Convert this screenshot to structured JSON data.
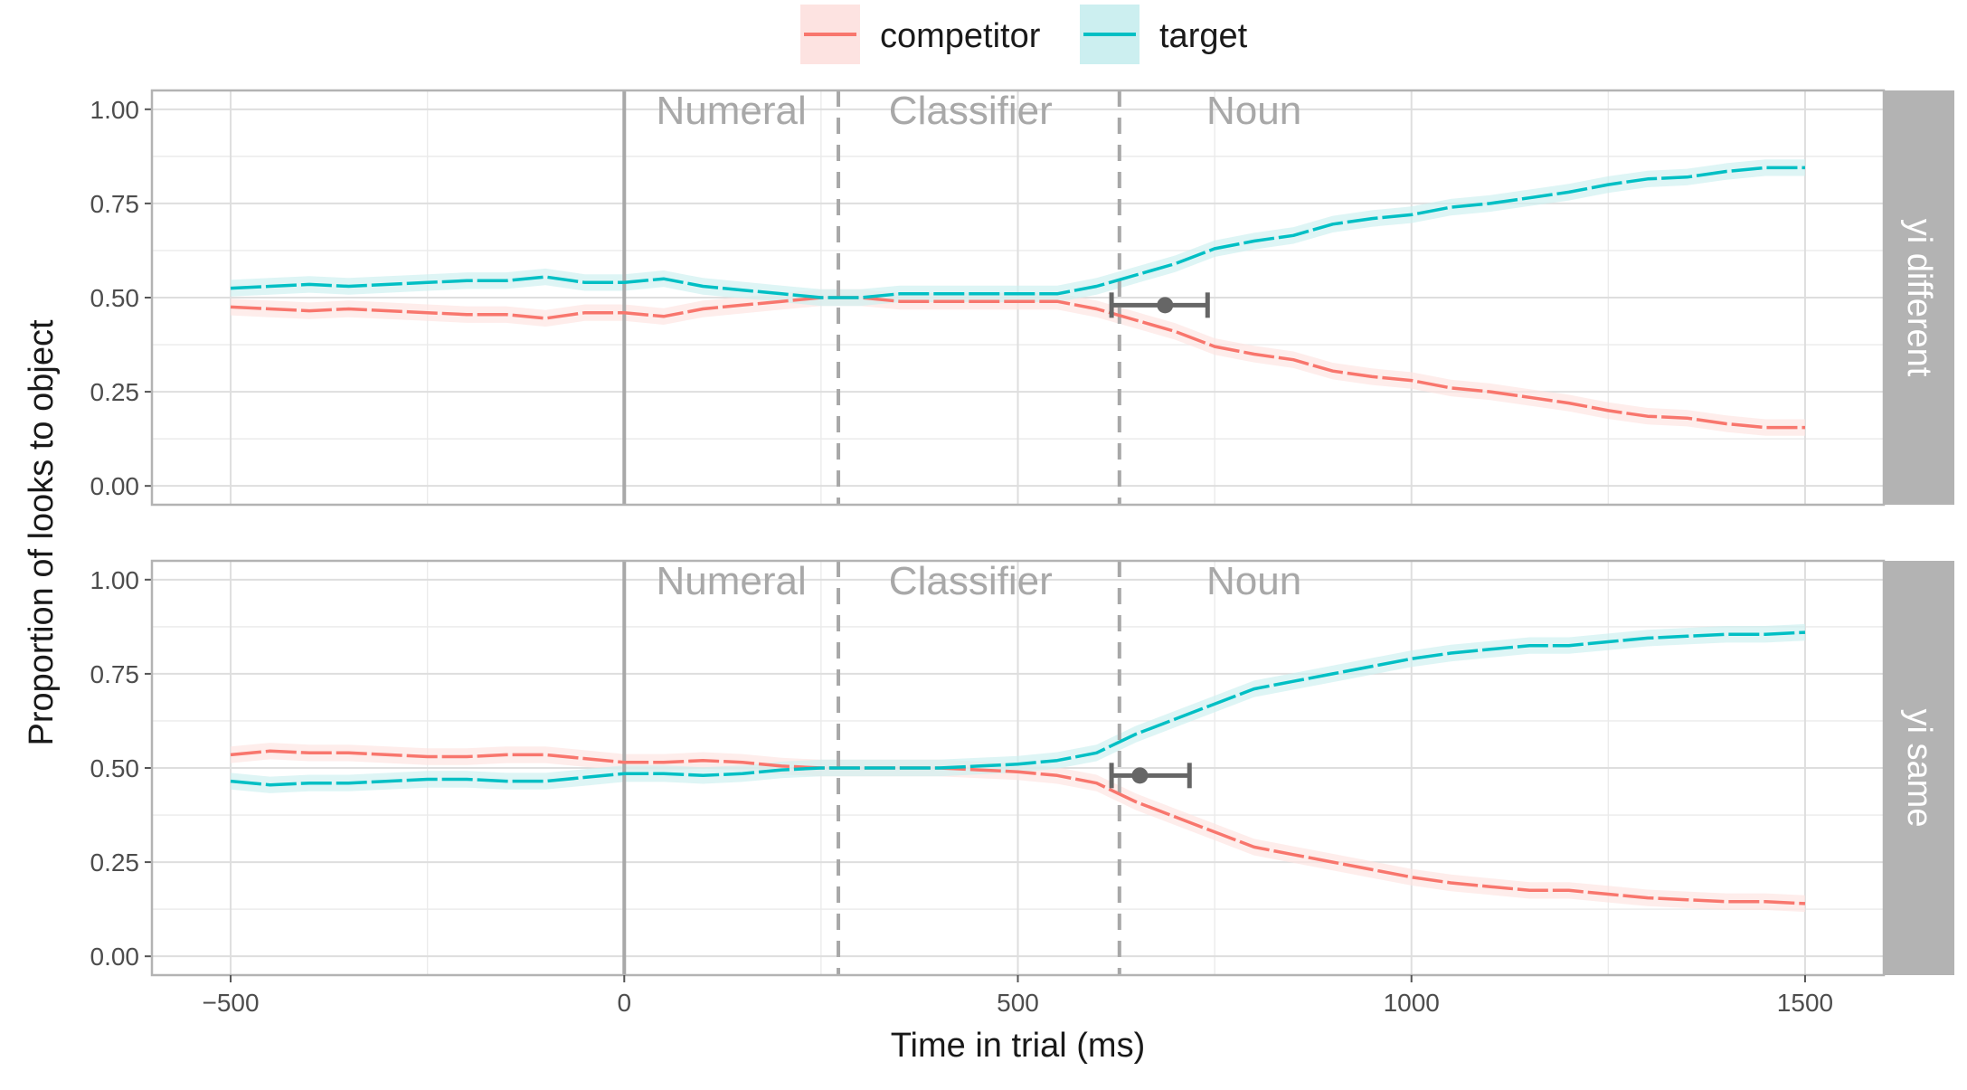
{
  "chart_data": {
    "type": "line",
    "xlabel": "Time in trial (ms)",
    "ylabel": "Proportion of looks to object",
    "xlim": [
      -600,
      1600
    ],
    "ylim": [
      -0.05,
      1.05
    ],
    "x_ticks": [
      -500,
      0,
      500,
      1000,
      1500
    ],
    "x_tick_labels": [
      "−500",
      "0",
      "500",
      "1000",
      "1500"
    ],
    "y_ticks": [
      0,
      0.25,
      0.5,
      0.75,
      1.0
    ],
    "y_tick_labels": [
      "0.00",
      "0.25",
      "0.50",
      "0.75",
      "1.00"
    ],
    "grid": true,
    "legend": {
      "position": "top",
      "entries": [
        {
          "name": "competitor",
          "color": "#F8766D",
          "fill": "#FDE3E1"
        },
        {
          "name": "target",
          "color": "#00BFC4",
          "fill": "#CCEFF0"
        }
      ]
    },
    "vlines": [
      {
        "x": 0,
        "style": "solid",
        "color": "#a8a8a8"
      },
      {
        "x": 272,
        "style": "dashed",
        "color": "#a8a8a8"
      },
      {
        "x": 629,
        "style": "dashed",
        "color": "#a8a8a8"
      }
    ],
    "region_labels": [
      {
        "text": "Numeral",
        "x": 136
      },
      {
        "text": "Classifier",
        "x": 440
      },
      {
        "text": "Noun",
        "x": 800
      }
    ],
    "x": [
      -500,
      -450,
      -400,
      -350,
      -300,
      -250,
      -200,
      -150,
      -100,
      -50,
      0,
      50,
      100,
      150,
      200,
      250,
      300,
      350,
      400,
      450,
      500,
      550,
      600,
      650,
      700,
      750,
      800,
      850,
      900,
      950,
      1000,
      1050,
      1100,
      1150,
      1200,
      1250,
      1300,
      1350,
      1400,
      1450,
      1500
    ],
    "panels": [
      {
        "label": "yi different",
        "series": [
          {
            "name": "competitor",
            "values": [
              0.475,
              0.47,
              0.465,
              0.47,
              0.465,
              0.46,
              0.455,
              0.455,
              0.445,
              0.46,
              0.46,
              0.45,
              0.47,
              0.48,
              0.49,
              0.5,
              0.5,
              0.49,
              0.49,
              0.49,
              0.49,
              0.49,
              0.47,
              0.44,
              0.41,
              0.37,
              0.35,
              0.335,
              0.305,
              0.29,
              0.28,
              0.26,
              0.25,
              0.235,
              0.22,
              0.2,
              0.185,
              0.18,
              0.165,
              0.155,
              0.155
            ]
          },
          {
            "name": "target",
            "values": [
              0.525,
              0.53,
              0.535,
              0.53,
              0.535,
              0.54,
              0.545,
              0.545,
              0.555,
              0.54,
              0.54,
              0.55,
              0.53,
              0.52,
              0.51,
              0.5,
              0.5,
              0.51,
              0.51,
              0.51,
              0.51,
              0.51,
              0.53,
              0.56,
              0.59,
              0.63,
              0.65,
              0.665,
              0.695,
              0.71,
              0.72,
              0.74,
              0.75,
              0.765,
              0.78,
              0.8,
              0.815,
              0.82,
              0.835,
              0.845,
              0.845
            ]
          }
        ],
        "errorbar": {
          "x": 687,
          "y": 0.48,
          "xmin": 619,
          "xmax": 741
        }
      },
      {
        "label": "yi same",
        "series": [
          {
            "name": "competitor",
            "values": [
              0.535,
              0.545,
              0.54,
              0.54,
              0.535,
              0.53,
              0.53,
              0.535,
              0.535,
              0.525,
              0.515,
              0.515,
              0.52,
              0.515,
              0.505,
              0.5,
              0.5,
              0.5,
              0.5,
              0.495,
              0.49,
              0.48,
              0.46,
              0.41,
              0.37,
              0.33,
              0.29,
              0.27,
              0.25,
              0.23,
              0.21,
              0.195,
              0.185,
              0.175,
              0.175,
              0.165,
              0.155,
              0.15,
              0.145,
              0.145,
              0.14
            ]
          },
          {
            "name": "target",
            "values": [
              0.465,
              0.455,
              0.46,
              0.46,
              0.465,
              0.47,
              0.47,
              0.465,
              0.465,
              0.475,
              0.485,
              0.485,
              0.48,
              0.485,
              0.495,
              0.5,
              0.5,
              0.5,
              0.5,
              0.505,
              0.51,
              0.52,
              0.54,
              0.59,
              0.63,
              0.67,
              0.71,
              0.73,
              0.75,
              0.77,
              0.79,
              0.805,
              0.815,
              0.825,
              0.825,
              0.835,
              0.845,
              0.85,
              0.855,
              0.855,
              0.86
            ]
          }
        ],
        "errorbar": {
          "x": 655,
          "y": 0.48,
          "xmin": 619,
          "xmax": 718
        }
      }
    ]
  }
}
